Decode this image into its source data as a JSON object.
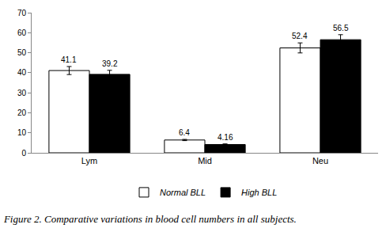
{
  "chart_data": {
    "type": "bar",
    "title": "Figure 2. Comparative variations in blood cell numbers in all subjects.",
    "categories": [
      "Lym",
      "Mid",
      "Neu"
    ],
    "series": [
      {
        "name": "Normal BLL",
        "color": "#ffffff",
        "values": [
          41.1,
          6.4,
          52.4
        ],
        "errors": [
          2.0,
          0.3,
          2.5
        ]
      },
      {
        "name": "High BLL",
        "color": "#000000",
        "values": [
          39.2,
          4.16,
          56.5
        ],
        "errors": [
          2.0,
          0.3,
          2.5
        ]
      }
    ],
    "ylim": [
      0,
      70
    ],
    "yticks": [
      0,
      10,
      20,
      30,
      40,
      50,
      60,
      70
    ],
    "grid": false,
    "legend": "bottom",
    "data_labels": true
  }
}
